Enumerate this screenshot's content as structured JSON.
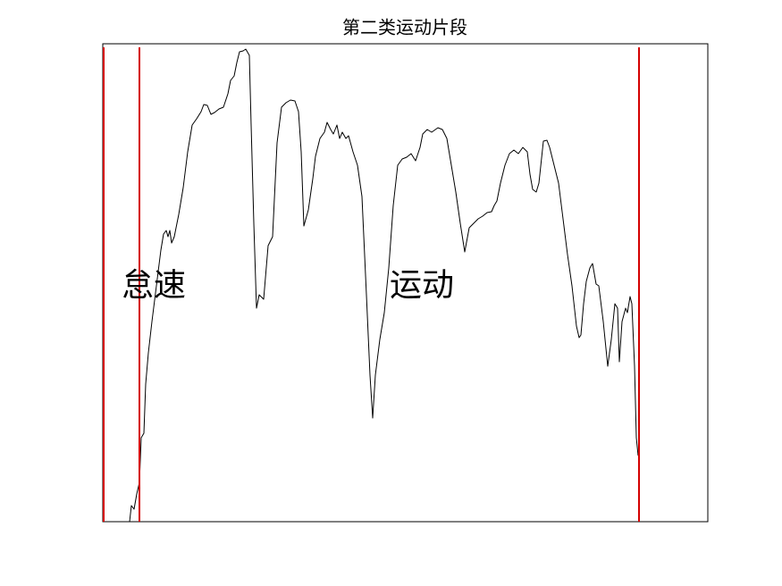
{
  "chart_data": {
    "type": "line",
    "title": "第二类运动片段",
    "annotations": [
      "怠速",
      "运动"
    ],
    "xlim": [
      0,
      677
    ],
    "ylim": [
      0,
      535
    ],
    "color": "#000000",
    "vline_color": "#d40000",
    "vlines": [
      1,
      41,
      600
    ],
    "x": [
      0,
      30,
      32,
      35,
      38,
      41,
      43,
      46,
      48,
      51,
      55,
      60,
      65,
      68,
      71,
      73,
      75,
      77,
      80,
      85,
      90,
      95,
      100,
      105,
      110,
      113,
      117,
      121,
      125,
      130,
      135,
      140,
      143,
      147,
      150,
      153,
      157,
      160,
      164,
      166,
      169,
      172,
      175,
      180,
      185,
      190,
      195,
      200,
      205,
      210,
      215,
      219,
      222,
      225,
      230,
      235,
      238,
      243,
      248,
      251,
      255,
      258,
      262,
      265,
      268,
      272,
      275,
      280,
      285,
      290,
      295,
      299,
      302,
      305,
      310,
      315,
      320,
      325,
      330,
      335,
      340,
      345,
      350,
      355,
      358,
      363,
      368,
      375,
      380,
      385,
      390,
      395,
      400,
      405,
      410,
      415,
      420,
      425,
      430,
      435,
      438,
      441,
      445,
      450,
      455,
      460,
      465,
      470,
      475,
      478,
      481,
      485,
      488,
      493,
      497,
      500,
      505,
      510,
      515,
      520,
      525,
      530,
      533,
      535,
      538,
      541,
      545,
      548,
      552,
      555,
      560,
      565,
      569,
      573,
      576,
      578,
      581,
      585,
      587,
      590,
      592,
      595,
      597,
      599
    ],
    "values": [
      0,
      0,
      18,
      14,
      31,
      44,
      94,
      99,
      154,
      189,
      224,
      264,
      304,
      322,
      326,
      319,
      326,
      312,
      319,
      344,
      374,
      414,
      444,
      451,
      459,
      467,
      466,
      456,
      458,
      462,
      464,
      479,
      494,
      499,
      514,
      526,
      527,
      529,
      522,
      444,
      334,
      239,
      254,
      249,
      309,
      319,
      424,
      464,
      469,
      472,
      471,
      459,
      414,
      331,
      349,
      384,
      409,
      429,
      436,
      447,
      439,
      434,
      444,
      429,
      436,
      429,
      432,
      414,
      399,
      364,
      254,
      164,
      116,
      164,
      204,
      234,
      284,
      354,
      399,
      406,
      408,
      412,
      404,
      419,
      434,
      439,
      436,
      441,
      439,
      429,
      399,
      369,
      334,
      302,
      329,
      334,
      339,
      342,
      346,
      347,
      354,
      359,
      379,
      399,
      412,
      416,
      412,
      419,
      414,
      389,
      372,
      369,
      379,
      426,
      427,
      419,
      399,
      379,
      339,
      299,
      264,
      219,
      206,
      209,
      244,
      269,
      284,
      289,
      266,
      264,
      224,
      174,
      204,
      244,
      239,
      179,
      224,
      239,
      234,
      252,
      244,
      174,
      94,
      74
    ]
  }
}
